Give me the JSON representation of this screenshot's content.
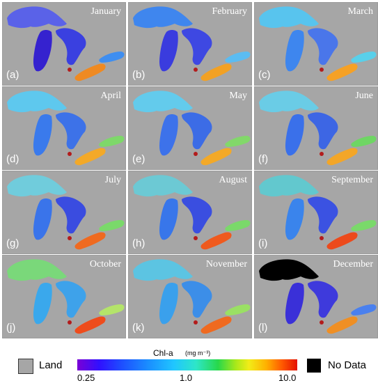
{
  "panels": [
    {
      "month": "January",
      "letter": "(a)",
      "sup": "#5a62e8",
      "mich": "#3522cf",
      "huron": "#3a40e0",
      "erie": "#ef8a22",
      "ont": "#3f8ef0"
    },
    {
      "month": "February",
      "letter": "(b)",
      "sup": "#3f86ee",
      "mich": "#3a3cde",
      "huron": "#3e48e2",
      "erie": "#f2a124",
      "ont": "#5bbcf2"
    },
    {
      "month": "March",
      "letter": "(c)",
      "sup": "#58c4ee",
      "mich": "#3e86ee",
      "huron": "#4a76ea",
      "erie": "#f5a126",
      "ont": "#59d0ea"
    },
    {
      "month": "April",
      "letter": "(d)",
      "sup": "#5ec8ee",
      "mich": "#3a7aec",
      "huron": "#3d72e8",
      "erie": "#f3a928",
      "ont": "#7ed86a"
    },
    {
      "month": "May",
      "letter": "(e)",
      "sup": "#63cbec",
      "mich": "#3d72ea",
      "huron": "#3c6ce6",
      "erie": "#f3a928",
      "ont": "#82d86a"
    },
    {
      "month": "June",
      "letter": "(f)",
      "sup": "#6acce6",
      "mich": "#3a70ea",
      "huron": "#3d66e4",
      "erie": "#f3a628",
      "ont": "#6fd664"
    },
    {
      "month": "July",
      "letter": "(g)",
      "sup": "#70ccdc",
      "mich": "#3a74ea",
      "huron": "#3a4ce0",
      "erie": "#ef6a20",
      "ont": "#7ad96a"
    },
    {
      "month": "August",
      "letter": "(h)",
      "sup": "#6cc9d4",
      "mich": "#3876ea",
      "huron": "#3a4ee0",
      "erie": "#ef5a1e",
      "ont": "#7ad96a"
    },
    {
      "month": "September",
      "letter": "(i)",
      "sup": "#62c8ce",
      "mich": "#3a84ec",
      "huron": "#3b52e2",
      "erie": "#ec4a1c",
      "ont": "#7ad96a"
    },
    {
      "month": "October",
      "letter": "(j)",
      "sup": "#7ad87a",
      "mich": "#3aa8ec",
      "huron": "#3ea2ea",
      "erie": "#ee4c1c",
      "ont": "#b4e46a"
    },
    {
      "month": "November",
      "letter": "(k)",
      "sup": "#5cc4e2",
      "mich": "#3aa0ec",
      "huron": "#3c8ee8",
      "erie": "#ef6a20",
      "ont": "#9ae064"
    },
    {
      "month": "December",
      "letter": "(l)",
      "sup": "#000000",
      "mich": "#3a30d8",
      "huron": "#3e3adc",
      "erie": "#ef8f24",
      "ont": "#4a80ee"
    }
  ],
  "legend": {
    "land_label": "Land",
    "colorbar_title": "Chl-a",
    "units": "(mg m⁻³)",
    "tick_min": "0.25",
    "tick_mid": "1.0",
    "tick_max": "10.0",
    "nodata_label": "No Data",
    "land_color": "#a6a6a6",
    "nodata_color": "#000000"
  }
}
